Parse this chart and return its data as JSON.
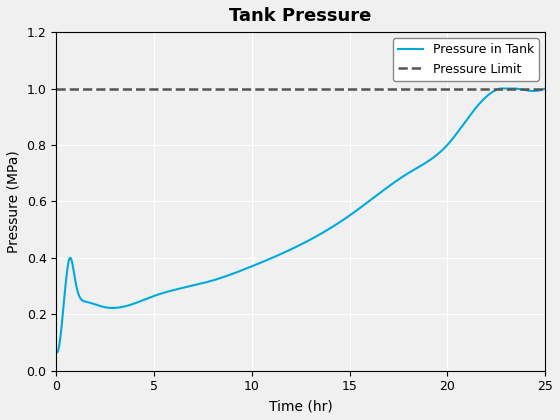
{
  "title": "Tank Pressure",
  "xlabel": "Time (hr)",
  "ylabel": "Pressure (MPa)",
  "xlim": [
    0,
    25
  ],
  "ylim": [
    0,
    1.2
  ],
  "xticks": [
    0,
    5,
    10,
    15,
    20,
    25
  ],
  "yticks": [
    0,
    0.2,
    0.4,
    0.6,
    0.8,
    1.0,
    1.2
  ],
  "pressure_limit": 1.0,
  "pressure_line_color": "#00AADD",
  "pressure_limit_color": "#555555",
  "legend_labels": [
    "Pressure in Tank",
    "Pressure Limit"
  ],
  "background_color": "#f0f0f0",
  "axes_background": "#f0f0f0",
  "grid_color": "#ffffff",
  "title_fontsize": 13,
  "axis_fontsize": 10,
  "tick_fontsize": 9
}
